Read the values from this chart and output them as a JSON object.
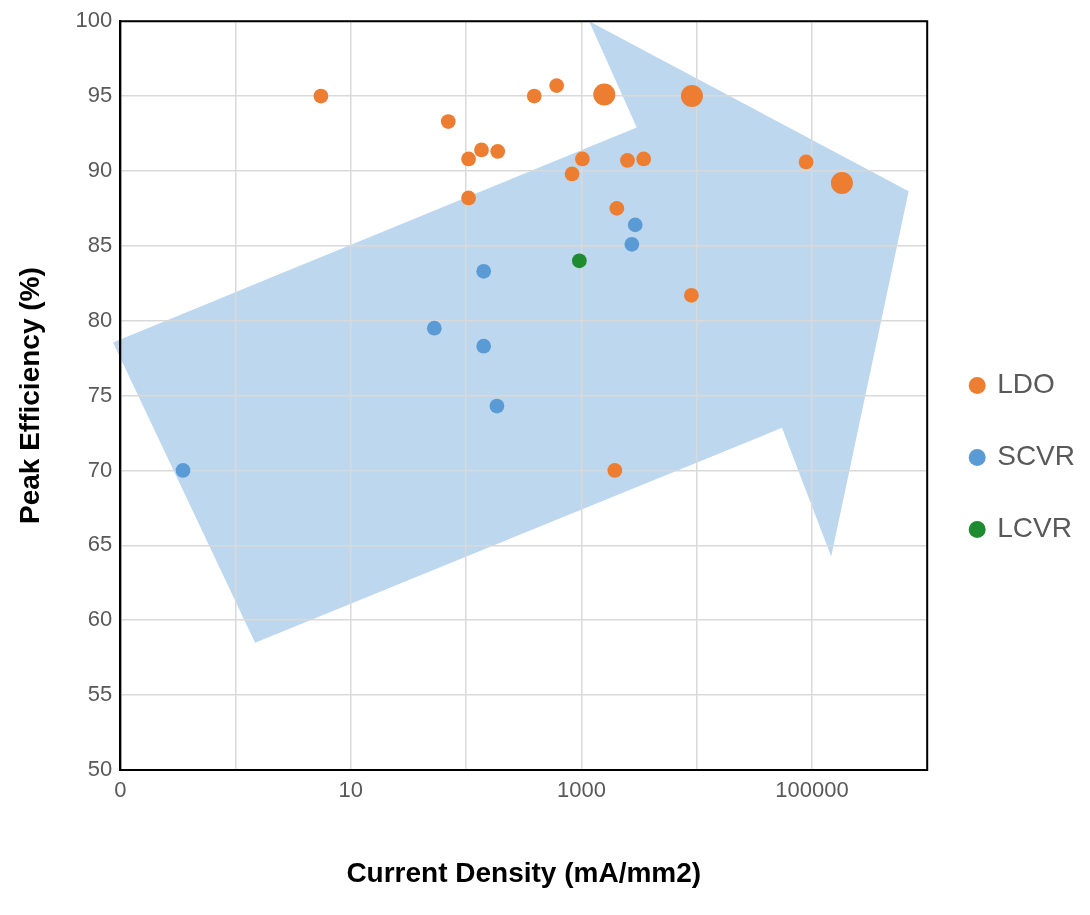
{
  "chart_data": {
    "type": "bubble",
    "xlabel": "Current Density (mA/mm2)",
    "ylabel": "Peak Efficiency (%)",
    "log": "x",
    "grid": true,
    "legend": "right",
    "xlim": [
      0.1,
      1000000
    ],
    "xticks": [
      {
        "value": 0.1,
        "label": "0"
      },
      {
        "value": 1,
        "label": null
      },
      10,
      {
        "value": 100,
        "label": null
      },
      1000,
      {
        "value": 10000,
        "label": null
      },
      100000,
      {
        "value": 1000000,
        "label": null
      }
    ],
    "ylim": [
      50,
      100
    ],
    "yticks": [
      50,
      55,
      60,
      65,
      70,
      75,
      80,
      85,
      90,
      95,
      100
    ],
    "series": [
      {
        "name": "LDO",
        "color": "#ed7d31",
        "x": [
          5.5,
          70,
          105,
          136,
          188,
          390,
          610,
          1580,
          105,
          830,
          1020,
          2030,
          2510,
          3470,
          9100,
          9000,
          1950,
          89000,
          182000
        ],
        "values": [
          95,
          93.3,
          90.8,
          91.4,
          91.3,
          95,
          95.7,
          95.1,
          88.2,
          89.8,
          90.8,
          87.5,
          90.7,
          90.8,
          95,
          81.7,
          70,
          90.6,
          89.2
        ],
        "sizes": [
          0.45,
          0.45,
          0.45,
          0.45,
          0.45,
          0.45,
          0.45,
          1,
          0.45,
          0.45,
          0.45,
          0.45,
          0.45,
          0.45,
          1,
          0.45,
          0.45,
          0.45,
          1
        ]
      },
      {
        "name": "SCVR",
        "color": "#5b9bd5",
        "x": [
          0.35,
          53,
          142,
          142,
          185,
          2930,
          2740
        ],
        "values": [
          70,
          79.5,
          83.3,
          78.3,
          74.3,
          86.4,
          85.1
        ],
        "sizes": [
          0.45,
          0.45,
          0.45,
          0.45,
          0.45,
          0.45,
          0.45
        ]
      },
      {
        "name": "LCVR",
        "color": "#1e8c2e",
        "x": [
          960
        ],
        "values": [
          84
        ],
        "sizes": [
          0.45
        ]
      }
    ]
  }
}
